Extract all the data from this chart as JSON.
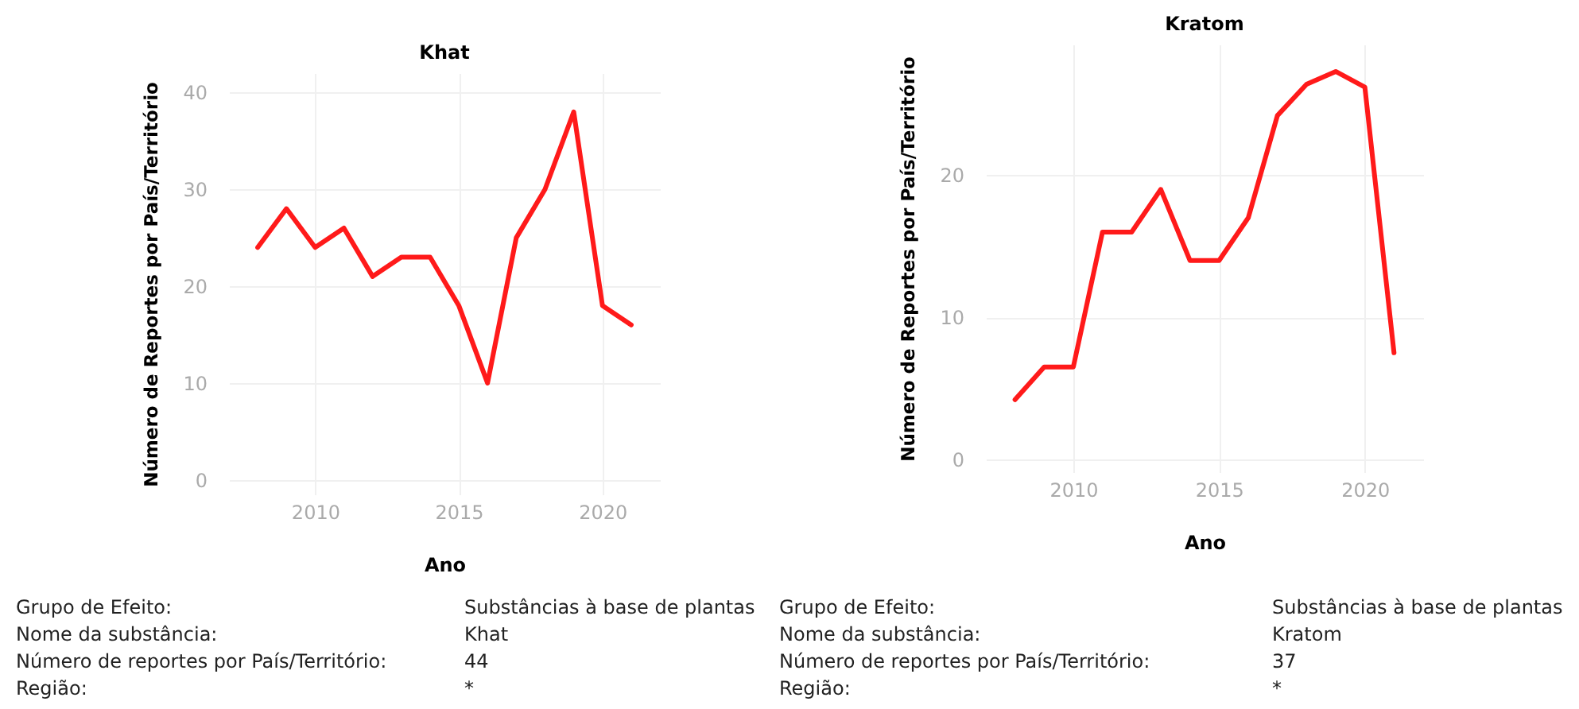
{
  "chart_data": [
    {
      "type": "line",
      "title": "Khat",
      "xlabel": "Ano",
      "ylabel": "Número de Reportes por País/Território",
      "x": [
        2008,
        2009,
        2010,
        2011,
        2012,
        2013,
        2014,
        2015,
        2016,
        2017,
        2018,
        2019,
        2020,
        2021
      ],
      "series": [
        {
          "color": "#ff1a1a",
          "values": [
            24,
            28,
            24,
            26,
            21,
            23,
            23,
            18,
            10,
            25,
            30,
            38,
            18,
            16
          ]
        }
      ],
      "xlim": [
        2007,
        2022
      ],
      "xticks": [
        2010,
        2015,
        2020
      ],
      "ylim": [
        -1.5,
        42
      ],
      "yticks": [
        0,
        10,
        20,
        30,
        40
      ],
      "grid": true,
      "marker": "none",
      "line_style": "solid",
      "annotations": [
        "Grupo de Efeito:",
        "Substâncias à base de plantas",
        "Nome da substância:",
        "Khat",
        "Número de reportes por País/Território:",
        "44",
        "Região:",
        "*"
      ]
    },
    {
      "type": "line",
      "title": "Kratom",
      "xlabel": "Ano",
      "ylabel": "Número de Reportes por País/Território",
      "x": [
        2008,
        2009,
        2010,
        2011,
        2012,
        2013,
        2014,
        2015,
        2016,
        2017,
        2018,
        2019,
        2020,
        2021
      ],
      "series": [
        {
          "color": "#ff1a1a",
          "values": [
            4.2,
            6.5,
            6.5,
            16,
            16,
            19,
            14,
            14,
            17,
            24.2,
            26.4,
            27.3,
            26.2,
            7.5
          ]
        }
      ],
      "xlim": [
        2007,
        2022
      ],
      "xticks": [
        2010,
        2015,
        2020
      ],
      "ylim": [
        -0.9,
        29.2
      ],
      "yticks": [
        0,
        10,
        20
      ],
      "grid": true,
      "marker": "none",
      "line_style": "solid",
      "annotations": [
        "Grupo de Efeito:",
        "Substâncias à base de plantas",
        "Nome da substância:",
        "Kratom",
        "Número de reportes por País/Território:",
        "37",
        "Região:",
        "*"
      ]
    }
  ]
}
